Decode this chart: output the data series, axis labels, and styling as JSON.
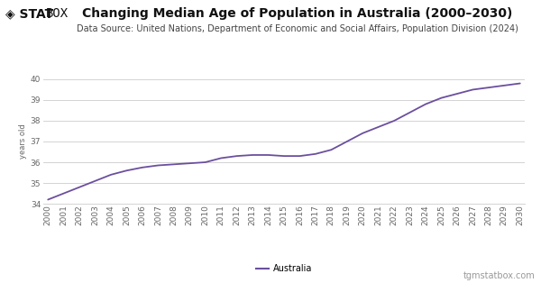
{
  "title": "Changing Median Age of Population in Australia (2000–2030)",
  "subtitle": "Data Source: United Nations, Department of Economic and Social Affairs, Population Division (2024)",
  "ylabel": "years old",
  "legend_label": "Australia",
  "line_color": "#6B4F9E",
  "background_color": "#ffffff",
  "plot_bg_color": "#ffffff",
  "grid_color": "#cccccc",
  "ylim": [
    34.0,
    40.0
  ],
  "yticks": [
    34,
    35,
    36,
    37,
    38,
    39,
    40
  ],
  "years": [
    2000,
    2001,
    2002,
    2003,
    2004,
    2005,
    2006,
    2007,
    2008,
    2009,
    2010,
    2011,
    2012,
    2013,
    2014,
    2015,
    2016,
    2017,
    2018,
    2019,
    2020,
    2021,
    2022,
    2023,
    2024,
    2025,
    2026,
    2027,
    2028,
    2029,
    2030
  ],
  "values": [
    34.2,
    34.5,
    34.8,
    35.1,
    35.4,
    35.6,
    35.75,
    35.85,
    35.9,
    35.95,
    36.0,
    36.2,
    36.3,
    36.35,
    36.35,
    36.3,
    36.3,
    36.4,
    36.6,
    37.0,
    37.4,
    37.7,
    38.0,
    38.4,
    38.8,
    39.1,
    39.3,
    39.5,
    39.6,
    39.7,
    39.8
  ],
  "statbox_text": "◈ STAT",
  "statbox_bold": "BOX",
  "footer_text": "tgmstatbox.com",
  "title_fontsize": 10,
  "subtitle_fontsize": 7,
  "ylabel_fontsize": 6,
  "tick_fontsize": 6.5,
  "legend_fontsize": 7,
  "footer_fontsize": 7
}
